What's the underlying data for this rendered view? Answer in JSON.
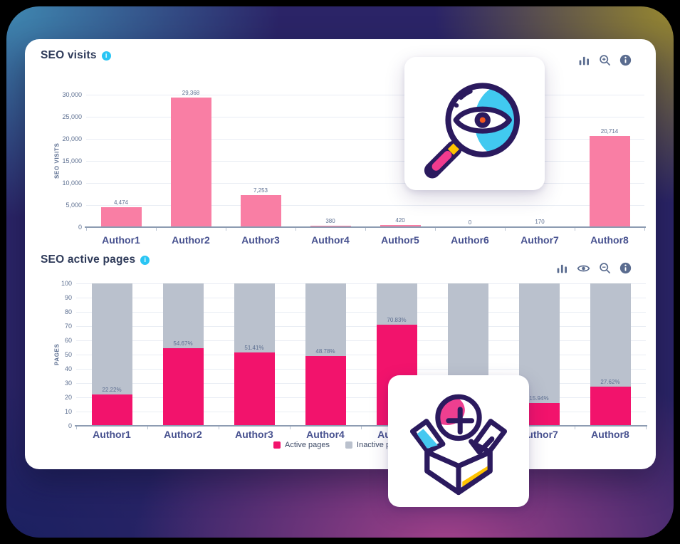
{
  "overlay_cards": [
    {
      "icon": "magnifier-eye-icon"
    },
    {
      "icon": "open-box-plus-icon"
    }
  ],
  "icons": {
    "info_badge_glyph": "i"
  },
  "colors": {
    "background_base": "#2b2467",
    "background_teal": "#3f88b1",
    "background_olive": "#97882f",
    "background_magenta": "#a2418a",
    "panel": "#ffffff",
    "title": "#2e3a59",
    "toolbar_icon": "#5a6c8f",
    "info_badge": "#29c5f4",
    "grid_line": "#e9edf4",
    "axis_line": "#8d9cb2",
    "tick_text": "#5d6f91",
    "category_text": "#47518f"
  },
  "chart_data": [
    {
      "type": "bar",
      "title": "SEO visits",
      "ylabel": "SEO VISITS",
      "categories": [
        "Author1",
        "Author2",
        "Author3",
        "Author4",
        "Author5",
        "Author6",
        "Author7",
        "Author8"
      ],
      "values": [
        4474,
        29368,
        7253,
        380,
        420,
        0,
        170,
        20714
      ],
      "value_labels": [
        "4,474",
        "29,368",
        "7,253",
        "380",
        "420",
        "0",
        "170",
        "20,714"
      ],
      "ylim": [
        0,
        30000
      ],
      "yticks": [
        0,
        5000,
        10000,
        15000,
        20000,
        25000,
        30000
      ],
      "ytick_labels": [
        "0",
        "5,000",
        "10,000",
        "15,000",
        "20,000",
        "25,000",
        "30,000"
      ],
      "grid": true,
      "bar_color": "#f97ea4",
      "toolbar_icons": [
        "bar-chart",
        "zoom-in",
        "info"
      ]
    },
    {
      "type": "bar",
      "stacked": true,
      "title": "SEO active pages",
      "ylabel": "PAGES",
      "categories": [
        "Author1",
        "Author2",
        "Author3",
        "Author4",
        "Author5",
        "Author6",
        "Author7",
        "Author8"
      ],
      "series": [
        {
          "name": "Active pages",
          "color": "#f2136c",
          "values": [
            22.22,
            54.67,
            51.41,
            48.78,
            70.83,
            0,
            15.94,
            27.62
          ],
          "value_labels": [
            "22.22%",
            "54.67%",
            "51.41%",
            "48.78%",
            "70.83%",
            "",
            "15.94%",
            "27.62%"
          ]
        },
        {
          "name": "Inactive pages",
          "color": "#bac1cd",
          "values": [
            77.78,
            45.33,
            48.59,
            51.22,
            29.17,
            100,
            84.06,
            72.38
          ]
        }
      ],
      "ylim": [
        0,
        100
      ],
      "yticks": [
        0,
        10,
        20,
        30,
        40,
        50,
        60,
        70,
        80,
        90,
        100
      ],
      "ytick_labels": [
        "0",
        "10",
        "20",
        "30",
        "40",
        "50",
        "60",
        "70",
        "80",
        "90",
        "100"
      ],
      "grid": true,
      "legend_position": "bottom",
      "toolbar_icons": [
        "bar-chart",
        "eye",
        "zoom-out",
        "info"
      ]
    }
  ]
}
